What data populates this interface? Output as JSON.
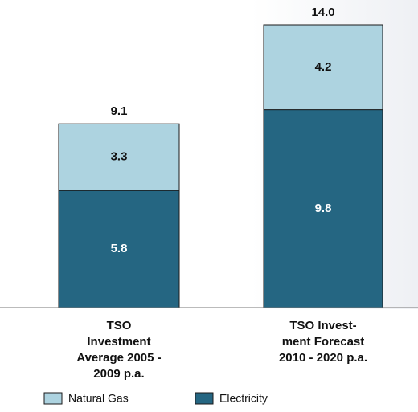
{
  "chart_data": {
    "type": "stacked_bar",
    "categories": [
      "TSO\nInvestment\nAverage 2005 -\n2009 p.a.",
      "TSO Invest-\nment Forecast\n2010 - 2020 p.a."
    ],
    "series": [
      {
        "name": "Natural Gas",
        "color": "#add3e0",
        "values": [
          3.3,
          4.2
        ]
      },
      {
        "name": "Electricity",
        "color": "#256682",
        "values": [
          5.8,
          9.8
        ]
      }
    ],
    "totals": [
      9.1,
      14.0
    ],
    "total_labels": [
      "9.1",
      "14.0"
    ],
    "ylim": [
      0,
      14
    ]
  }
}
